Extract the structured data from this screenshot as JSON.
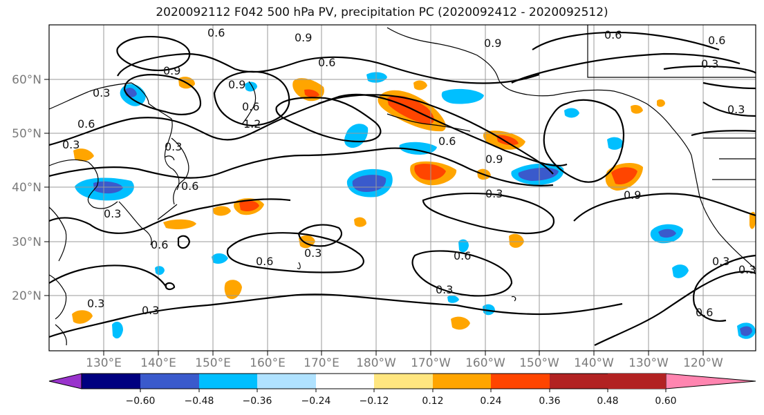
{
  "title": "2020092112 F042 500 hPa PV, precipitation PC (2020092412 - 2020092512)",
  "lat_labels": [
    "60°N",
    "50°N",
    "40°N",
    "30°N",
    "20°N"
  ],
  "lon_labels": [
    "130°E",
    "140°E",
    "150°E",
    "160°E",
    "170°E",
    "180°W",
    "170°W",
    "160°W",
    "150°W",
    "140°W",
    "130°W",
    "120°W"
  ],
  "colorbar": {
    "labels": [
      "−0.60",
      "−0.48",
      "−0.36",
      "−0.24",
      "−0.12",
      "0.12",
      "0.24",
      "0.36",
      "0.48",
      "0.60"
    ],
    "colors": [
      "#9933cc",
      "#000080",
      "#3a5acc",
      "#00bfff",
      "#b0e2ff",
      "#ffffff",
      "#ffe680",
      "#ffa500",
      "#ff4500",
      "#b22222",
      "#ff85b0"
    ]
  },
  "contour_labels": [
    "0.6",
    "0.9",
    "0.6",
    "0.9",
    "0.9",
    "0.3",
    "0.9",
    "1.2",
    "0.6",
    "0.6",
    "0.3",
    "0.9",
    "0.3",
    "0.6",
    "0.3",
    "0.6",
    "0.9",
    "0.3",
    "0.3",
    "0.6",
    "0.3",
    "0.6",
    "0.6",
    "0.3",
    "0.3",
    "0.3",
    "0.6",
    "0.3",
    "0.6",
    "0.3",
    "0.6",
    "0.3"
  ]
}
